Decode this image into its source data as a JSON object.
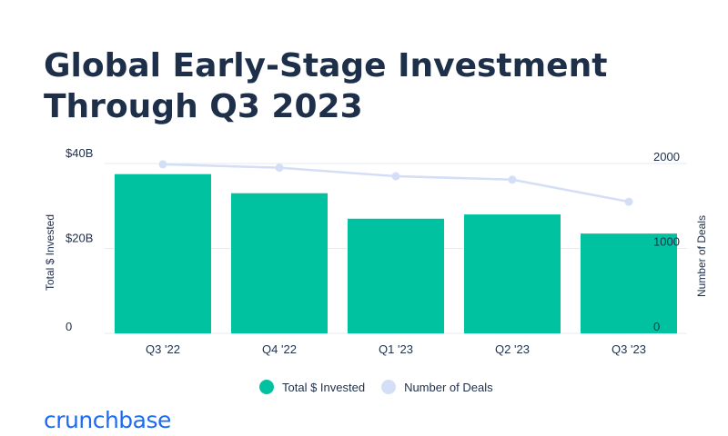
{
  "title": "Global Early-Stage Investment Through Q3 2023",
  "logo": "crunchbase",
  "colors": {
    "bars": "#00c2a0",
    "line": "#d4def6",
    "text": "#1e2f4a",
    "logo": "#1d6bf3",
    "grid": "#e6e9ef"
  },
  "chart_data": {
    "type": "bar",
    "categories": [
      "Q3 '22",
      "Q4 '22",
      "Q1 '23",
      "Q2 '23",
      "Q3 '23"
    ],
    "series": [
      {
        "name": "Total $ Invested",
        "type": "bar",
        "axis": "left",
        "values": [
          37.5,
          33,
          27,
          28,
          23.5
        ]
      },
      {
        "name": "Number of Deals",
        "type": "line",
        "axis": "right",
        "values": [
          1990,
          1950,
          1850,
          1810,
          1550
        ]
      }
    ],
    "left_axis": {
      "label": "Total $ Invested",
      "ticks": [
        "$40B",
        "$20B",
        "0"
      ],
      "ylim": [
        0,
        40
      ]
    },
    "right_axis": {
      "label": "Number of Deals",
      "ticks": [
        "2000",
        "1000",
        "0"
      ],
      "ylim": [
        0,
        2000
      ]
    },
    "grid": true,
    "legend_position": "bottom-center"
  }
}
